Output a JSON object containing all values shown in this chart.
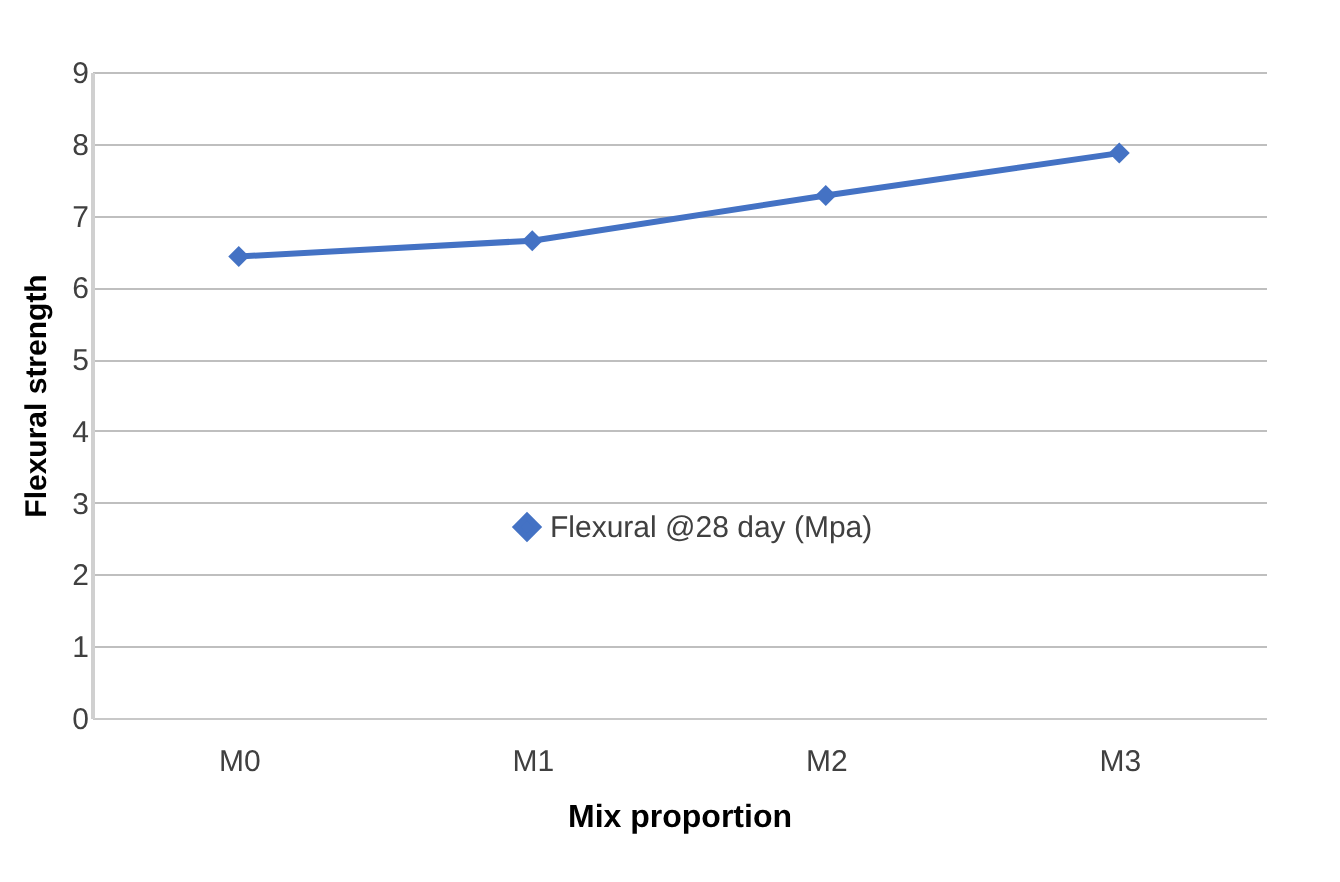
{
  "chart_data": {
    "type": "line",
    "xlabel": "Mix proportion",
    "ylabel": "Flexural strength",
    "categories": [
      "M0",
      "M1",
      "M2",
      "M3"
    ],
    "series": [
      {
        "name": "Flexural @28 day (Mpa)",
        "color": "#4472c4",
        "values": [
          6.43,
          6.65,
          7.28,
          7.87
        ]
      }
    ],
    "ylim": [
      0,
      9
    ],
    "yticks": [
      0,
      1,
      2,
      3,
      4,
      5,
      6,
      7,
      8,
      9
    ],
    "grid": "y",
    "legend": "center",
    "marker": "diamond",
    "line_style": "solid"
  }
}
